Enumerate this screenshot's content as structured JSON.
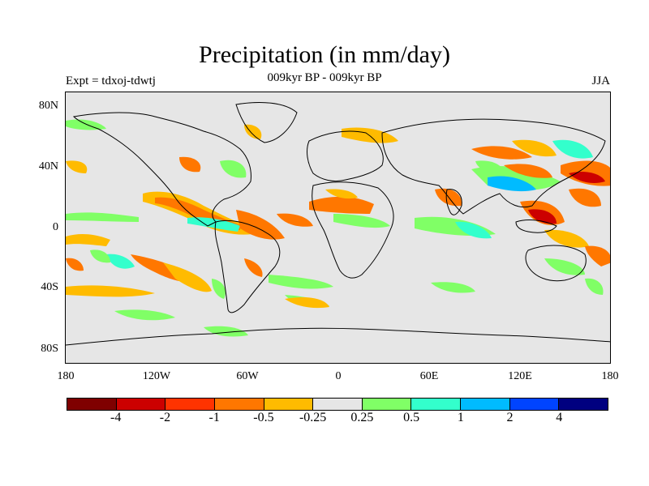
{
  "header": {
    "title": "Precipitation (in mm/day)",
    "subtitle": "009kyr BP - 009kyr BP",
    "left_label": "Expt = tdxoj-tdwtj",
    "right_label": "JJA"
  },
  "axes": {
    "lat_ticks": [
      "80N",
      "40N",
      "0",
      "40S",
      "80S"
    ],
    "lon_ticks": [
      "180",
      "120W",
      "60W",
      "0",
      "60E",
      "120E",
      "180"
    ]
  },
  "colorbar": {
    "colors": [
      "#7f0000",
      "#cc0000",
      "#ff3300",
      "#ff7700",
      "#ffbb00",
      "#e6e6e6",
      "#80ff66",
      "#33ffcc",
      "#00bbff",
      "#0044ff",
      "#000080"
    ],
    "labels": [
      "-4",
      "-2",
      "-1",
      "-0.5",
      "-0.25",
      "0.25",
      "0.5",
      "1",
      "2",
      "4"
    ]
  },
  "colors": {
    "land_background": "#e6e6e6",
    "coastline": "#000000"
  }
}
